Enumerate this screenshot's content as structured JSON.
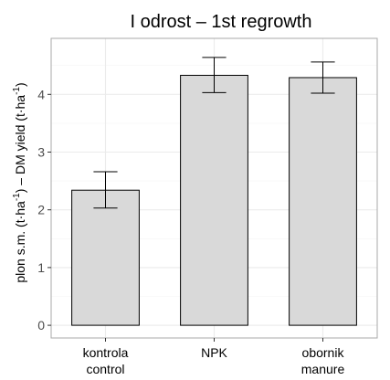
{
  "chart_data": {
    "type": "bar",
    "title": "I odrost – 1st regrowth",
    "ylabel": {
      "part1": "plon s.m. (t·ha",
      "sup1": "-1",
      "part2": ") – DM yield (t·ha",
      "sup2": "-1",
      "part3": ")"
    },
    "categories": [
      {
        "line1": "kontrola",
        "line2": "control"
      },
      {
        "line1": "NPK",
        "line2": ""
      },
      {
        "line1": "obornik",
        "line2": "manure"
      }
    ],
    "values": [
      2.34,
      4.33,
      4.29
    ],
    "errors": [
      {
        "low": 2.03,
        "high": 2.66
      },
      {
        "low": 4.03,
        "high": 4.64
      },
      {
        "low": 4.02,
        "high": 4.56
      }
    ],
    "ylim": [
      -0.22,
      4.97
    ],
    "yticks": [
      "0",
      "1",
      "2",
      "3",
      "4"
    ],
    "grid": true,
    "colors": {
      "bar_fill": "#d9d9d9",
      "bar_stroke": "#000000",
      "grid_major": "#ebebeb",
      "grid_minor": "#f5f5f5",
      "panel_border": "#a9a9a9",
      "errorbar": "#000000"
    }
  }
}
